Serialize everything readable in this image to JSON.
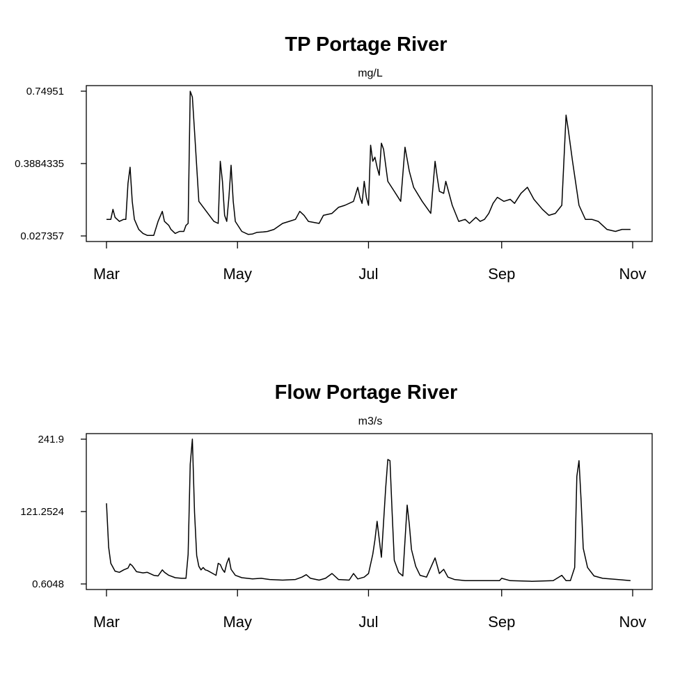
{
  "chart_data": [
    {
      "type": "line",
      "title": "TP Portage River",
      "subtitle": "mg/L",
      "xlabel": "",
      "ylabel": "",
      "x_ticks": [
        "Mar",
        "May",
        "Jul",
        "Sep",
        "Nov"
      ],
      "x_tick_dates": [
        "03-01",
        "05-01",
        "07-01",
        "09-01",
        "11-01"
      ],
      "y_ticks": [
        "0.027357",
        "0.3884335",
        "0.74951"
      ],
      "ylim": [
        0.027357,
        0.74951
      ],
      "grid": false,
      "series": [
        {
          "points": [
            [
              "03-01",
              0.11
            ],
            [
              "03-03",
              0.11
            ],
            [
              "03-04",
              0.16
            ],
            [
              "03-05",
              0.12
            ],
            [
              "03-07",
              0.1
            ],
            [
              "03-09",
              0.11
            ],
            [
              "03-10",
              0.11
            ],
            [
              "03-11",
              0.29
            ],
            [
              "03-12",
              0.37
            ],
            [
              "03-13",
              0.2
            ],
            [
              "03-14",
              0.11
            ],
            [
              "03-16",
              0.06
            ],
            [
              "03-18",
              0.04
            ],
            [
              "03-20",
              0.03
            ],
            [
              "03-23",
              0.03
            ],
            [
              "03-25",
              0.1
            ],
            [
              "03-27",
              0.15
            ],
            [
              "03-28",
              0.1
            ],
            [
              "03-30",
              0.08
            ],
            [
              "03-31",
              0.06
            ],
            [
              "04-02",
              0.04
            ],
            [
              "04-04",
              0.05
            ],
            [
              "04-06",
              0.05
            ],
            [
              "04-07",
              0.08
            ],
            [
              "04-08",
              0.09
            ],
            [
              "04-09",
              0.749
            ],
            [
              "04-10",
              0.72
            ],
            [
              "04-11",
              0.55
            ],
            [
              "04-13",
              0.2
            ],
            [
              "04-20",
              0.1
            ],
            [
              "04-22",
              0.09
            ],
            [
              "04-23",
              0.4
            ],
            [
              "04-24",
              0.3
            ],
            [
              "04-25",
              0.13
            ],
            [
              "04-26",
              0.1
            ],
            [
              "04-27",
              0.22
            ],
            [
              "04-28",
              0.38
            ],
            [
              "04-29",
              0.2
            ],
            [
              "04-30",
              0.1
            ],
            [
              "05-03",
              0.05
            ],
            [
              "05-06",
              0.035
            ],
            [
              "05-08",
              0.037
            ],
            [
              "05-10",
              0.045
            ],
            [
              "05-13",
              0.047
            ],
            [
              "05-15",
              0.05
            ],
            [
              "05-18",
              0.06
            ],
            [
              "05-22",
              0.09
            ],
            [
              "05-25",
              0.1
            ],
            [
              "05-28",
              0.11
            ],
            [
              "05-30",
              0.15
            ],
            [
              "06-01",
              0.13
            ],
            [
              "06-03",
              0.1
            ],
            [
              "06-08",
              0.09
            ],
            [
              "06-10",
              0.13
            ],
            [
              "06-14",
              0.14
            ],
            [
              "06-17",
              0.17
            ],
            [
              "06-20",
              0.18
            ],
            [
              "06-24",
              0.2
            ],
            [
              "06-26",
              0.27
            ],
            [
              "06-27",
              0.22
            ],
            [
              "06-28",
              0.19
            ],
            [
              "06-29",
              0.3
            ],
            [
              "06-30",
              0.22
            ],
            [
              "07-01",
              0.18
            ],
            [
              "07-02",
              0.48
            ],
            [
              "07-03",
              0.4
            ],
            [
              "07-04",
              0.42
            ],
            [
              "07-05",
              0.37
            ],
            [
              "07-06",
              0.33
            ],
            [
              "07-07",
              0.49
            ],
            [
              "07-08",
              0.46
            ],
            [
              "07-10",
              0.3
            ],
            [
              "07-13",
              0.25
            ],
            [
              "07-16",
              0.2
            ],
            [
              "07-18",
              0.47
            ],
            [
              "07-20",
              0.35
            ],
            [
              "07-22",
              0.27
            ],
            [
              "07-26",
              0.2
            ],
            [
              "07-30",
              0.14
            ],
            [
              "08-01",
              0.4
            ],
            [
              "08-02",
              0.32
            ],
            [
              "08-03",
              0.25
            ],
            [
              "08-05",
              0.24
            ],
            [
              "08-06",
              0.3
            ],
            [
              "08-09",
              0.18
            ],
            [
              "08-12",
              0.1
            ],
            [
              "08-15",
              0.11
            ],
            [
              "08-17",
              0.09
            ],
            [
              "08-20",
              0.12
            ],
            [
              "08-22",
              0.1
            ],
            [
              "08-24",
              0.11
            ],
            [
              "08-26",
              0.14
            ],
            [
              "08-28",
              0.19
            ],
            [
              "08-30",
              0.22
            ],
            [
              "09-02",
              0.2
            ],
            [
              "09-05",
              0.21
            ],
            [
              "09-07",
              0.19
            ],
            [
              "09-10",
              0.24
            ],
            [
              "09-13",
              0.27
            ],
            [
              "09-16",
              0.21
            ],
            [
              "09-20",
              0.16
            ],
            [
              "09-23",
              0.13
            ],
            [
              "09-26",
              0.14
            ],
            [
              "09-29",
              0.18
            ],
            [
              "10-01",
              0.63
            ],
            [
              "10-02",
              0.56
            ],
            [
              "10-04",
              0.4
            ],
            [
              "10-07",
              0.18
            ],
            [
              "10-10",
              0.11
            ],
            [
              "10-13",
              0.11
            ],
            [
              "10-16",
              0.1
            ],
            [
              "10-20",
              0.06
            ],
            [
              "10-24",
              0.05
            ],
            [
              "10-27",
              0.06
            ],
            [
              "10-31",
              0.06
            ]
          ]
        }
      ]
    },
    {
      "type": "line",
      "title": "Flow Portage River",
      "subtitle": "m3/s",
      "xlabel": "",
      "ylabel": "",
      "x_ticks": [
        "Mar",
        "May",
        "Jul",
        "Sep",
        "Nov"
      ],
      "x_tick_dates": [
        "03-01",
        "05-01",
        "07-01",
        "09-01",
        "11-01"
      ],
      "y_ticks": [
        "0.6048",
        "121.2524",
        "241.9"
      ],
      "ylim": [
        0.6048,
        241.9
      ],
      "grid": false,
      "series": [
        {
          "points": [
            [
              "03-01",
              135
            ],
            [
              "03-02",
              62
            ],
            [
              "03-03",
              35
            ],
            [
              "03-05",
              22
            ],
            [
              "03-07",
              20
            ],
            [
              "03-09",
              24
            ],
            [
              "03-11",
              27
            ],
            [
              "03-12",
              34
            ],
            [
              "03-13",
              31
            ],
            [
              "03-15",
              21
            ],
            [
              "03-18",
              19
            ],
            [
              "03-20",
              20
            ],
            [
              "03-23",
              15
            ],
            [
              "03-25",
              14
            ],
            [
              "03-27",
              24
            ],
            [
              "03-28",
              20
            ],
            [
              "03-30",
              15
            ],
            [
              "04-02",
              11
            ],
            [
              "04-05",
              10
            ],
            [
              "04-07",
              10
            ],
            [
              "04-08",
              50
            ],
            [
              "04-09",
              200
            ],
            [
              "04-10",
              242
            ],
            [
              "04-11",
              120
            ],
            [
              "04-12",
              48
            ],
            [
              "04-13",
              30
            ],
            [
              "04-14",
              24
            ],
            [
              "04-15",
              28
            ],
            [
              "04-16",
              24
            ],
            [
              "04-17",
              23
            ],
            [
              "04-19",
              19
            ],
            [
              "04-21",
              15
            ],
            [
              "04-22",
              35
            ],
            [
              "04-23",
              33
            ],
            [
              "04-24",
              25
            ],
            [
              "04-25",
              20
            ],
            [
              "04-26",
              35
            ],
            [
              "04-27",
              44
            ],
            [
              "04-28",
              25
            ],
            [
              "04-30",
              15
            ],
            [
              "05-03",
              11
            ],
            [
              "05-08",
              9
            ],
            [
              "05-12",
              10
            ],
            [
              "05-16",
              8
            ],
            [
              "05-22",
              7
            ],
            [
              "05-28",
              8
            ],
            [
              "05-31",
              12
            ],
            [
              "06-02",
              16
            ],
            [
              "06-04",
              10
            ],
            [
              "06-08",
              7
            ],
            [
              "06-11",
              10
            ],
            [
              "06-14",
              18
            ],
            [
              "06-17",
              8
            ],
            [
              "06-22",
              7
            ],
            [
              "06-24",
              18
            ],
            [
              "06-26",
              9
            ],
            [
              "06-29",
              12
            ],
            [
              "07-01",
              18
            ],
            [
              "07-03",
              50
            ],
            [
              "07-04",
              74
            ],
            [
              "07-05",
              105
            ],
            [
              "07-06",
              75
            ],
            [
              "07-07",
              45
            ],
            [
              "07-09",
              160
            ],
            [
              "07-10",
              208
            ],
            [
              "07-11",
              206
            ],
            [
              "07-12",
              120
            ],
            [
              "07-13",
              40
            ],
            [
              "07-15",
              20
            ],
            [
              "07-17",
              14
            ],
            [
              "07-19",
              132
            ],
            [
              "07-20",
              100
            ],
            [
              "07-21",
              58
            ],
            [
              "07-23",
              30
            ],
            [
              "07-25",
              15
            ],
            [
              "07-28",
              12
            ],
            [
              "08-01",
              44
            ],
            [
              "08-03",
              18
            ],
            [
              "08-05",
              25
            ],
            [
              "08-07",
              12
            ],
            [
              "08-10",
              8
            ],
            [
              "08-15",
              6
            ],
            [
              "08-20",
              6
            ],
            [
              "08-31",
              6
            ],
            [
              "09-01",
              10
            ],
            [
              "09-05",
              6
            ],
            [
              "09-15",
              5
            ],
            [
              "09-25",
              6
            ],
            [
              "09-29",
              15
            ],
            [
              "10-01",
              6
            ],
            [
              "10-03",
              6
            ],
            [
              "10-05",
              28
            ],
            [
              "10-06",
              180
            ],
            [
              "10-07",
              206
            ],
            [
              "10-08",
              140
            ],
            [
              "10-09",
              60
            ],
            [
              "10-11",
              28
            ],
            [
              "10-14",
              14
            ],
            [
              "10-18",
              10
            ],
            [
              "10-25",
              8
            ],
            [
              "10-31",
              6
            ]
          ]
        }
      ]
    }
  ]
}
